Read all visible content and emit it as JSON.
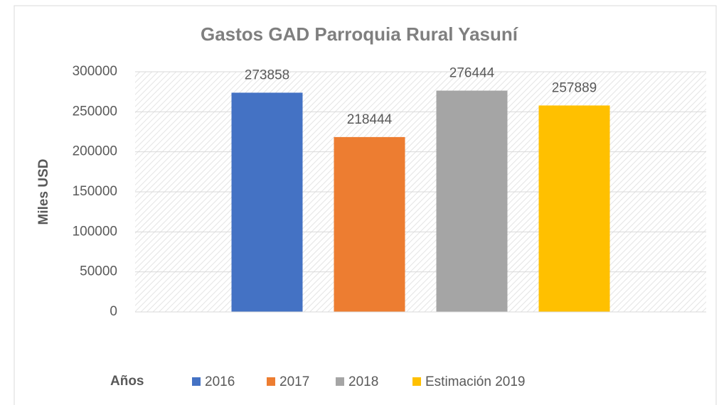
{
  "chart_data": {
    "type": "bar",
    "title": "Gastos GAD Parroquia Rural Yasuní",
    "y_label": "Miles USD",
    "legend_title": "Años",
    "categories": [
      null
    ],
    "series": [
      {
        "name": "2016",
        "color": "#4472c4",
        "values": [
          273858
        ]
      },
      {
        "name": "2017",
        "color": "#ed7d31",
        "values": [
          218444
        ]
      },
      {
        "name": "2018",
        "color": "#a5a5a5",
        "values": [
          276444
        ]
      },
      {
        "name": "Estimación 2019",
        "color": "#ffc000",
        "values": [
          257889
        ]
      }
    ],
    "ylim": [
      0,
      300000
    ],
    "yticks": [
      0,
      50000,
      100000,
      150000,
      200000,
      250000,
      300000
    ],
    "grid": true,
    "legend": "bottom"
  }
}
